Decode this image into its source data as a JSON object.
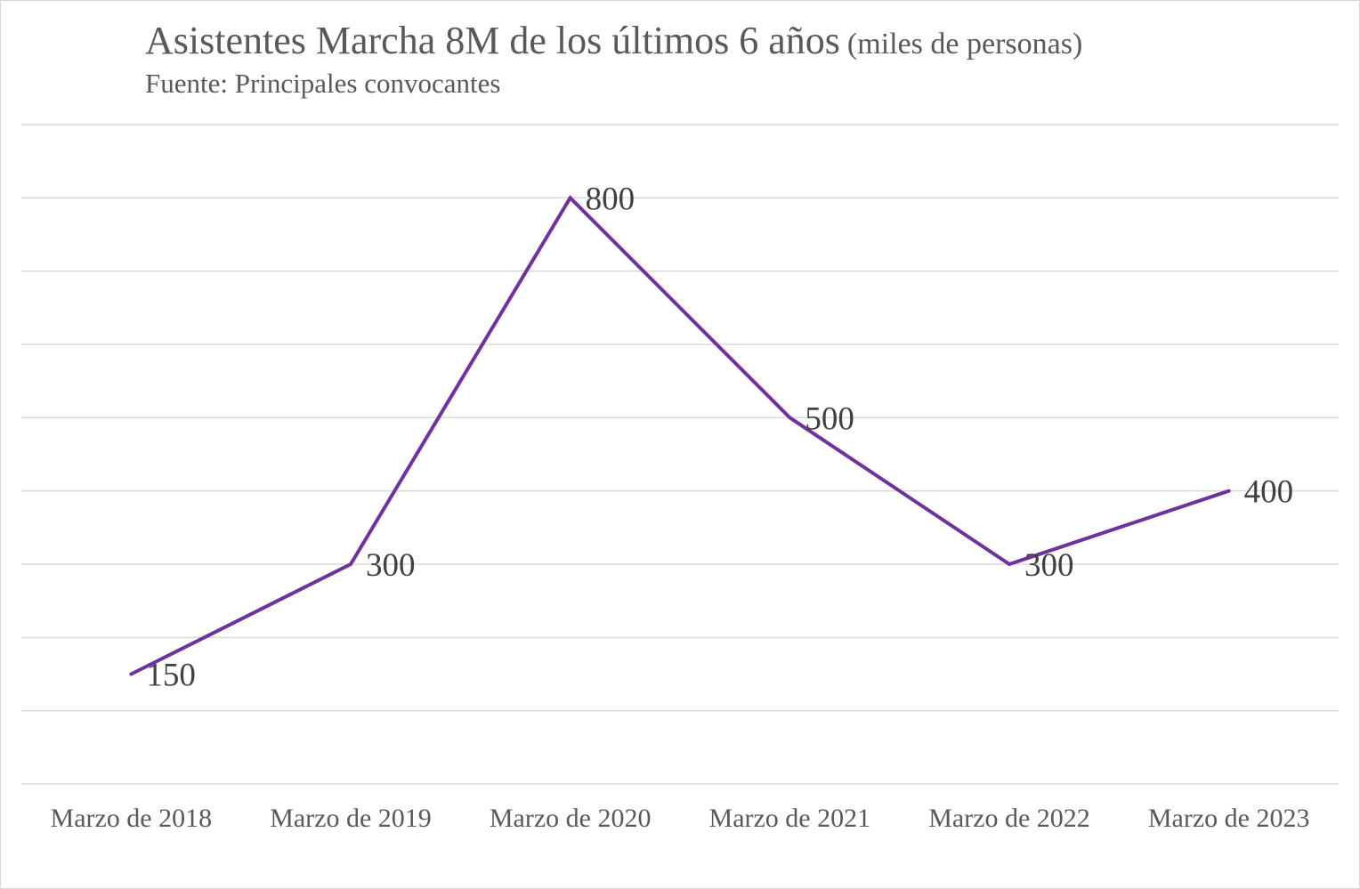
{
  "chart_data": {
    "type": "line",
    "title": "Asistentes Marcha 8M de los últimos 6 años",
    "title_unit": "(miles de personas)",
    "subtitle": "Fuente: Principales convocantes",
    "xlabel": "",
    "ylabel": "",
    "categories": [
      "Marzo de 2018",
      "Marzo de 2019",
      "Marzo de 2020",
      "Marzo de 2021",
      "Marzo de 2022",
      "Marzo de 2023"
    ],
    "series": [
      {
        "values": [
          150,
          300,
          800,
          500,
          300,
          400
        ],
        "color": "#7030a0"
      }
    ],
    "ylim": [
      0,
      900
    ],
    "ytick_step": 100,
    "grid": true,
    "data_labels": true,
    "legend": "none"
  }
}
